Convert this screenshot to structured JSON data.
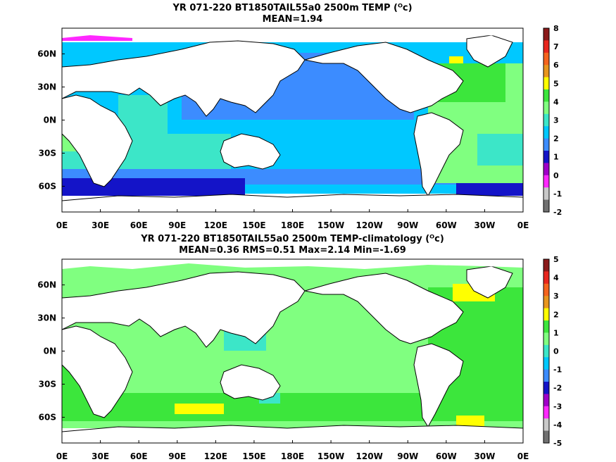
{
  "panels": [
    {
      "title_line1": "YR 071-220 BT1850TAIL55a0 2500m TEMP (ᴼc)",
      "title_line2": "MEAN=1.94",
      "colorbar_ticks": [
        "8",
        "7",
        "6",
        "5",
        "4",
        "3",
        "2",
        "1",
        "0",
        "-1",
        "-2"
      ],
      "colorbar_colors": [
        "#8b1a1a",
        "#e8261e",
        "#f5641e",
        "#e8961e",
        "#ffff00",
        "#3ce63c",
        "#80ff80",
        "#3ce6c8",
        "#00c8ff",
        "#3c8cff",
        "#1414c8",
        "#a000c8",
        "#ff28ff",
        "#c8c8c8",
        "#707070"
      ]
    },
    {
      "title_line1": "YR 071-220 BT1850TAIL55a0 2500m TEMP-climatology (ᴼc)",
      "title_line2": "MEAN=0.36   RMS=0.51   Max=2.14   Min=-1.69",
      "colorbar_ticks": [
        "5",
        "4",
        "3",
        "2",
        "1",
        "0",
        "-1",
        "-2",
        "-3",
        "-4",
        "-5"
      ],
      "colorbar_colors": [
        "#8b1a1a",
        "#e8261e",
        "#f5641e",
        "#e8961e",
        "#ffff00",
        "#3ce63c",
        "#80ff80",
        "#3ce6c8",
        "#00c8ff",
        "#3c8cff",
        "#1414c8",
        "#a000c8",
        "#ff28ff",
        "#c8c8c8",
        "#707070"
      ]
    }
  ],
  "lat_labels": [
    "60N",
    "30N",
    "0N",
    "30S",
    "60S"
  ],
  "lon_labels": [
    "0E",
    "30E",
    "60E",
    "90E",
    "120E",
    "150E",
    "180E",
    "150W",
    "120W",
    "90W",
    "60W",
    "30W",
    "0E"
  ]
}
